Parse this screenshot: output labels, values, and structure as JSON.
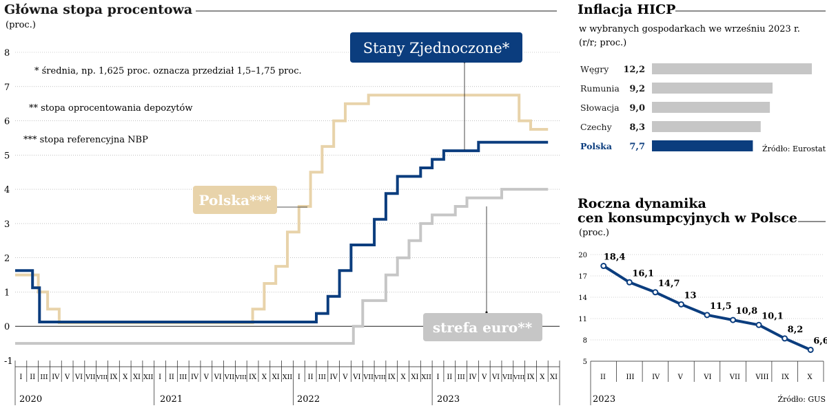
{
  "colors": {
    "navy": "#0b3d7e",
    "beige": "#e8d3aa",
    "gray": "#c6c6c6",
    "text": "#1a1a1a"
  },
  "chart_data": [
    {
      "type": "line",
      "title": "Główna stopa procentowa",
      "unit": "(proc.)",
      "ylim": [
        -1,
        8
      ],
      "y_ticks": [
        "8",
        "7",
        "6",
        "5",
        "4",
        "3",
        "2",
        "1",
        "0",
        "-1"
      ],
      "months": [
        "I",
        "II",
        "III",
        "IV",
        "V",
        "VI",
        "VII",
        "VIII",
        "IX",
        "X",
        "XI",
        "XII",
        "I",
        "II",
        "III",
        "IV",
        "V",
        "VI",
        "VII",
        "VIII",
        "IX",
        "X",
        "XI",
        "XII",
        "I",
        "II",
        "III",
        "IV",
        "V",
        "VI",
        "VII",
        "VIII",
        "IX",
        "X",
        "XI",
        "XII",
        "I",
        "II",
        "III",
        "IV",
        "V",
        "VI",
        "VII",
        "VIII",
        "IX",
        "X",
        "XI"
      ],
      "years": [
        "2020",
        "2021",
        "2022",
        "2023"
      ],
      "notes": [
        "* średnia, np. 1,625 proc. oznacza przedział 1,5–1,75 proc.",
        "** stopa oprocentowania depozytów",
        "*** stopa referencyjna NBP"
      ],
      "series": [
        {
          "name": "Polska***",
          "color": "beige",
          "steps": [
            [
              0,
              1.5
            ],
            [
              2,
              1.0
            ],
            [
              2.8,
              0.5
            ],
            [
              3.8,
              0.1
            ],
            [
              16,
              0.1
            ],
            [
              20.5,
              0.5
            ],
            [
              21.5,
              1.25
            ],
            [
              22.5,
              1.75
            ],
            [
              23.5,
              2.75
            ],
            [
              24.5,
              3.5
            ],
            [
              25.5,
              4.5
            ],
            [
              26.5,
              5.25
            ],
            [
              27.5,
              6.0
            ],
            [
              28.5,
              6.5
            ],
            [
              30.5,
              6.75
            ],
            [
              43.5,
              6.0
            ],
            [
              44.5,
              5.75
            ],
            [
              46,
              5.75
            ]
          ]
        },
        {
          "name": "Stany Zjednoczone*",
          "color": "navy",
          "steps": [
            [
              0,
              1.625
            ],
            [
              1.5,
              1.125
            ],
            [
              2.1,
              0.125
            ],
            [
              25,
              0.125
            ],
            [
              26,
              0.375
            ],
            [
              27,
              0.875
            ],
            [
              28,
              1.625
            ],
            [
              29,
              2.375
            ],
            [
              31,
              3.125
            ],
            [
              32,
              3.875
            ],
            [
              33,
              4.375
            ],
            [
              35,
              4.625
            ],
            [
              36,
              4.875
            ],
            [
              37,
              5.125
            ],
            [
              40,
              5.375
            ],
            [
              46,
              5.375
            ]
          ]
        },
        {
          "name": "strefa euro**",
          "color": "gray",
          "steps": [
            [
              0,
              -0.5
            ],
            [
              29,
              -0.5
            ],
            [
              29.2,
              0.0
            ],
            [
              30,
              0.75
            ],
            [
              32,
              1.5
            ],
            [
              33,
              2.0
            ],
            [
              34,
              2.5
            ],
            [
              35,
              3.0
            ],
            [
              36,
              3.25
            ],
            [
              38,
              3.5
            ],
            [
              39,
              3.75
            ],
            [
              42,
              4.0
            ],
            [
              46,
              4.0
            ]
          ]
        }
      ]
    },
    {
      "type": "bar",
      "title": "Inflacja HICP",
      "subtitle": "w wybranych gospodarkach we wrześniu 2023 r.",
      "unit": "(r/r; proc.)",
      "categories": [
        "Węgry",
        "Rumunia",
        "Słowacja",
        "Czechy",
        "Polska"
      ],
      "value_labels": [
        "12,2",
        "9,2",
        "9,0",
        "8,3",
        "7,7"
      ],
      "values": [
        12.2,
        9.2,
        9.0,
        8.3,
        7.7
      ],
      "highlight": "Polska",
      "source": "Źródło: Eurostat"
    },
    {
      "type": "line",
      "title_lines": [
        "Roczna dynamika",
        "cen konsumpcyjnych w Polsce"
      ],
      "unit": "(proc.)",
      "categories": [
        "II",
        "III",
        "IV",
        "V",
        "VI",
        "VII",
        "VIII",
        "IX",
        "X"
      ],
      "values": [
        18.4,
        16.1,
        14.7,
        13,
        11.5,
        10.8,
        10.1,
        8.2,
        6.6
      ],
      "value_labels": [
        "18,4",
        "16,1",
        "14,7",
        "13",
        "11,5",
        "10,8",
        "10,1",
        "8,2",
        "6,6"
      ],
      "y_ticks": [
        "20",
        "17",
        "14",
        "11",
        "8",
        "5"
      ],
      "ylim": [
        5,
        20
      ],
      "year": "2023",
      "source": "Źródło: GUS"
    }
  ]
}
